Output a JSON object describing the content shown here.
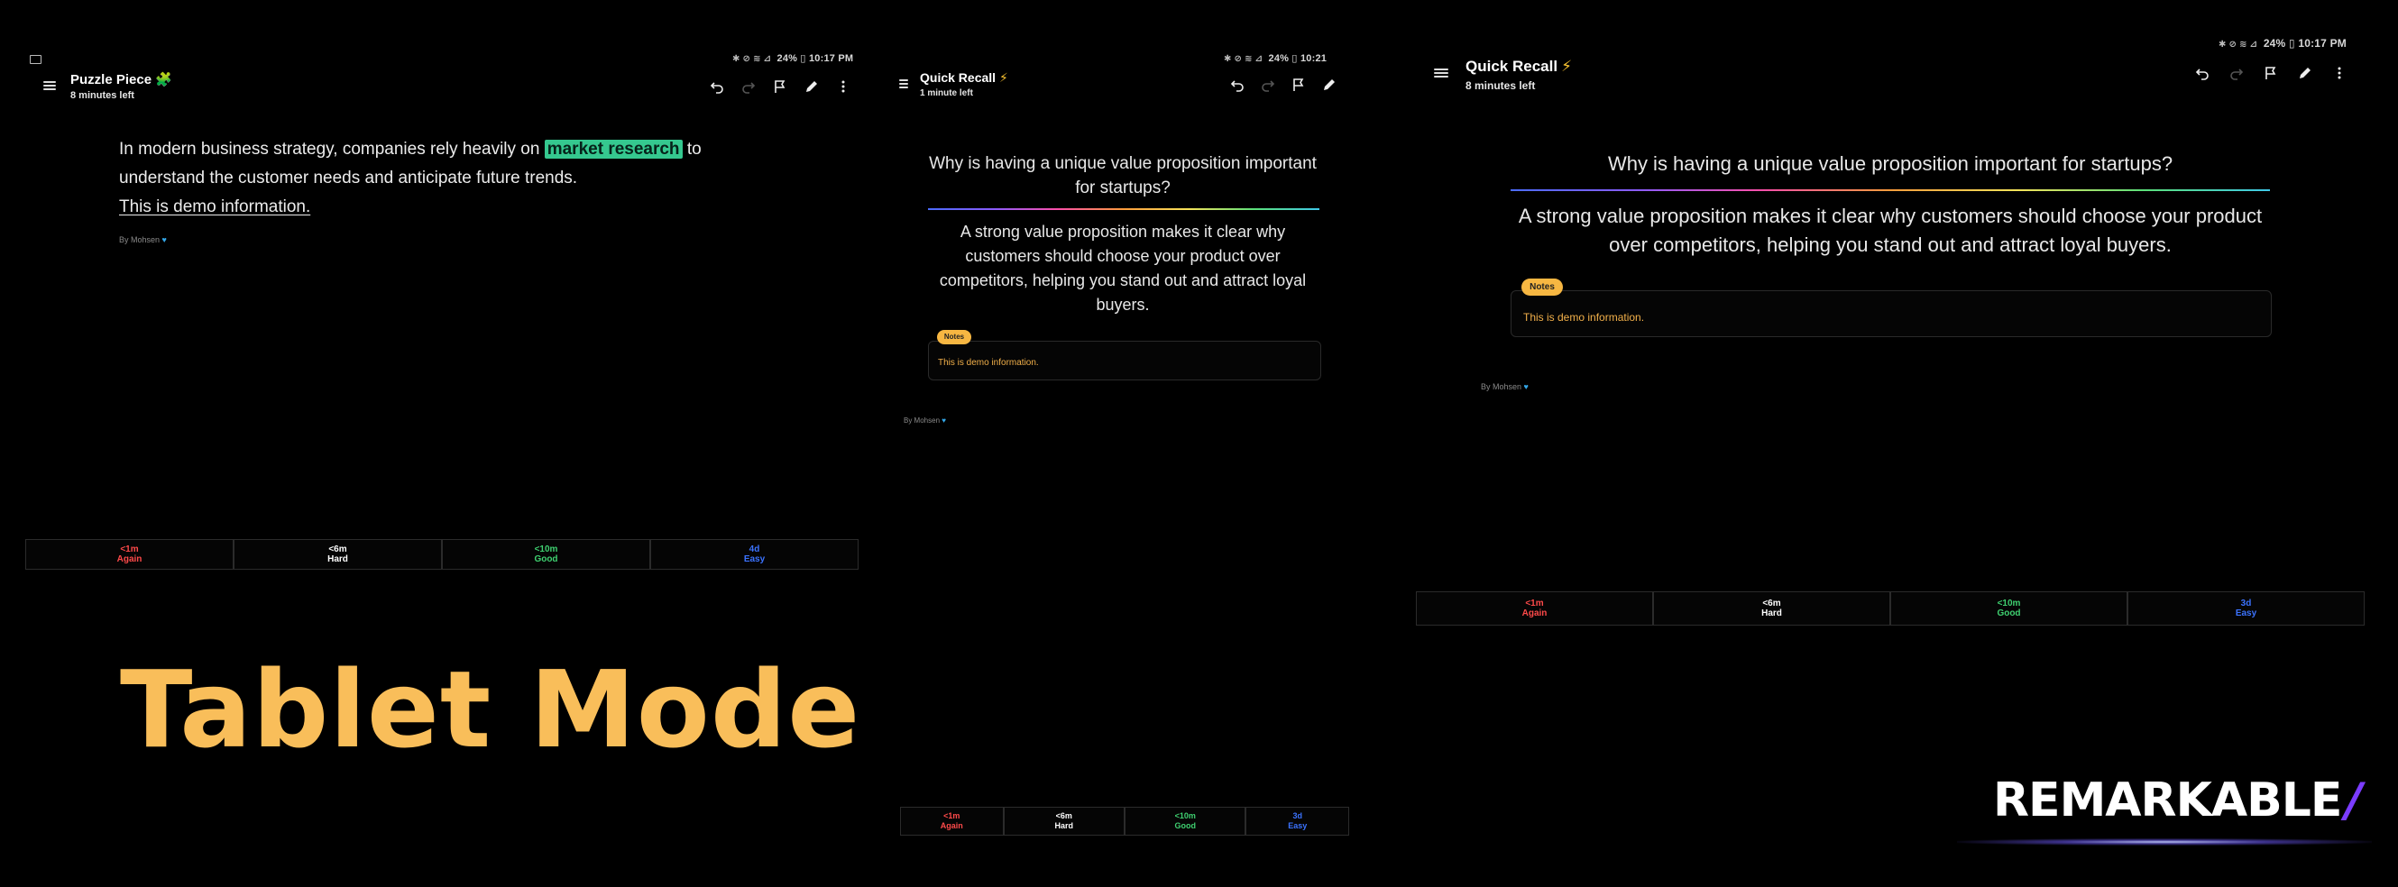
{
  "status": {
    "time1": "10:17 PM",
    "time2": "10:21",
    "time3": "10:17 PM",
    "battery": "24%"
  },
  "panel1": {
    "title": "Puzzle Piece",
    "title_emoji": "🧩",
    "subtitle": "8 minutes left",
    "para_pre": "In modern business strategy, companies rely heavily on",
    "para_highlight": "market research",
    "para_mid": "to",
    "para_post": "understand the customer needs and anticipate future trends.",
    "para_underline": "This is demo information.",
    "byline": "By Mohsen",
    "buttons": [
      {
        "time": "<1m",
        "label": "Again"
      },
      {
        "time": "<6m",
        "label": "Hard"
      },
      {
        "time": "<10m",
        "label": "Good"
      },
      {
        "time": "4d",
        "label": "Easy"
      }
    ]
  },
  "panel2": {
    "title": "Quick Recall",
    "title_emoji": "⚡",
    "subtitle": "1 minute left",
    "question": "Why is having a unique value proposition important for startups?",
    "answer": "A strong value proposition makes it clear why customers should choose your product over competitors, helping you stand out and attract loyal buyers.",
    "notes_label": "Notes",
    "notes_text": "This is demo information.",
    "byline": "By Mohsen",
    "buttons": [
      {
        "time": "<1m",
        "label": "Again"
      },
      {
        "time": "<6m",
        "label": "Hard"
      },
      {
        "time": "<10m",
        "label": "Good"
      },
      {
        "time": "3d",
        "label": "Easy"
      }
    ]
  },
  "panel3": {
    "title": "Quick Recall",
    "title_emoji": "⚡",
    "subtitle": "8 minutes left",
    "question": "Why is having a unique value proposition important for startups?",
    "answer": "A strong value proposition makes it clear why customers should choose your product over competitors, helping you stand out and attract loyal buyers.",
    "notes_label": "Notes",
    "notes_text": "This is demo information.",
    "byline": "By Mohsen",
    "buttons": [
      {
        "time": "<1m",
        "label": "Again"
      },
      {
        "time": "<6m",
        "label": "Hard"
      },
      {
        "time": "<10m",
        "label": "Good"
      },
      {
        "time": "3d",
        "label": "Easy"
      }
    ]
  },
  "overlay": {
    "tablet_mode": "Tablet Mode",
    "brand": "REMARKABLE",
    "brand_slash": "/"
  },
  "colors": {
    "again": "#ff4a4a",
    "hard": "#ffffff",
    "good": "#3fd070",
    "easy": "#3b73ff",
    "notes": "#f7b742",
    "highlight": "#35c88f",
    "tablet_text": "#f9be5a",
    "brand_accent": "#7b3cff"
  }
}
